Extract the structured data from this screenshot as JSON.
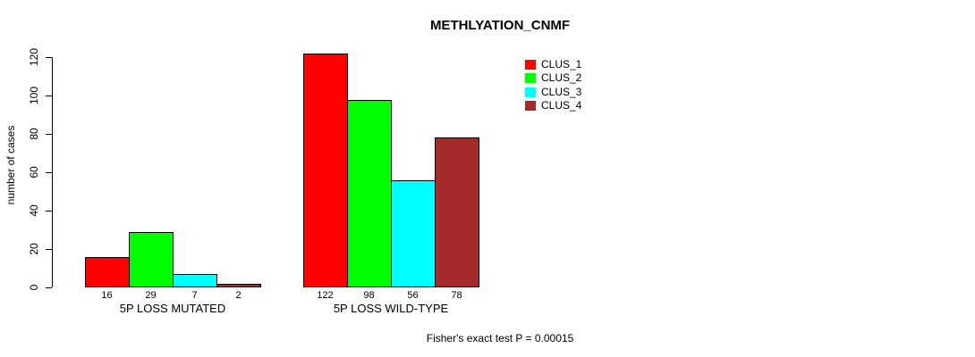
{
  "chart_data": {
    "type": "bar",
    "title": "METHLYATION_CNMF",
    "xlabel": "",
    "ylabel": "number of cases",
    "ylim": [
      0,
      120
    ],
    "yticks": [
      0,
      20,
      40,
      60,
      80,
      100,
      120
    ],
    "categories": [
      "5P LOSS MUTATED",
      "5P LOSS WILD-TYPE"
    ],
    "series": [
      {
        "name": "CLUS_1",
        "color": "#ff0000",
        "values": [
          16,
          122
        ]
      },
      {
        "name": "CLUS_2",
        "color": "#00ff00",
        "values": [
          29,
          98
        ]
      },
      {
        "name": "CLUS_3",
        "color": "#00ffff",
        "values": [
          7,
          56
        ]
      },
      {
        "name": "CLUS_4",
        "color": "#a52a2a",
        "values": [
          2,
          78
        ]
      }
    ],
    "bar_value_labels": true,
    "grid": false,
    "legend_position": "top-right",
    "annotation": "Fisher's exact test P = 0.00015"
  }
}
